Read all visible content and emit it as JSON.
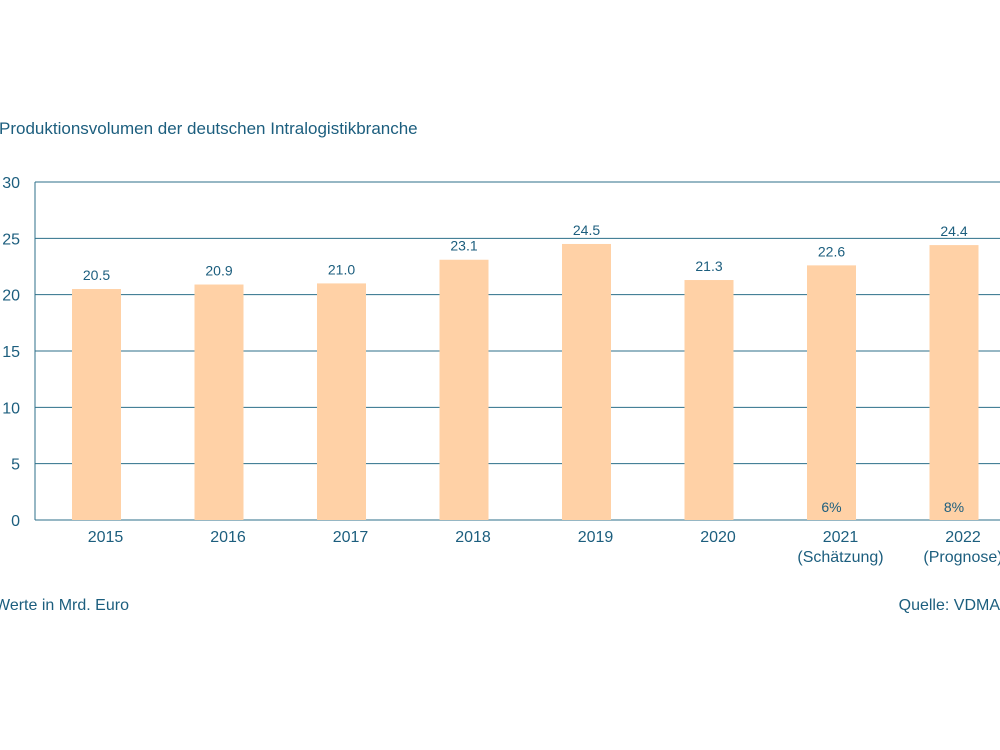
{
  "title": "Produktionsvolumen der deutschen Intralogistikbranche",
  "footnote": "Werte in Mrd. Euro",
  "source": "Quelle: VDMA",
  "colors": {
    "bar": "#ffd1a6",
    "grid": "#2c6f8a",
    "text": "#1c5e7e"
  },
  "chart_data": {
    "type": "bar",
    "title": "Produktionsvolumen der deutschen Intralogistikbranche",
    "categories": [
      "2015",
      "2016",
      "2017",
      "2018",
      "2019",
      "2020",
      "2021",
      "2022"
    ],
    "category_sublabels": [
      "",
      "",
      "",
      "",
      "",
      "",
      "(Schätzung)",
      "(Prognose)"
    ],
    "values": [
      20.5,
      20.9,
      21.0,
      23.1,
      24.5,
      21.3,
      22.6,
      24.4
    ],
    "value_labels": [
      "20.5",
      "20.9",
      "21.0",
      "23.1",
      "24.5",
      "21.3",
      "22.6",
      "24.4"
    ],
    "annotations": [
      "",
      "",
      "",
      "",
      "",
      "",
      "6%",
      "8%"
    ],
    "yticks": [
      "0",
      "5",
      "10",
      "15",
      "20",
      "25",
      "30"
    ],
    "ylim": [
      0,
      30
    ],
    "grid": true,
    "xlabel": "",
    "ylabel": ""
  }
}
